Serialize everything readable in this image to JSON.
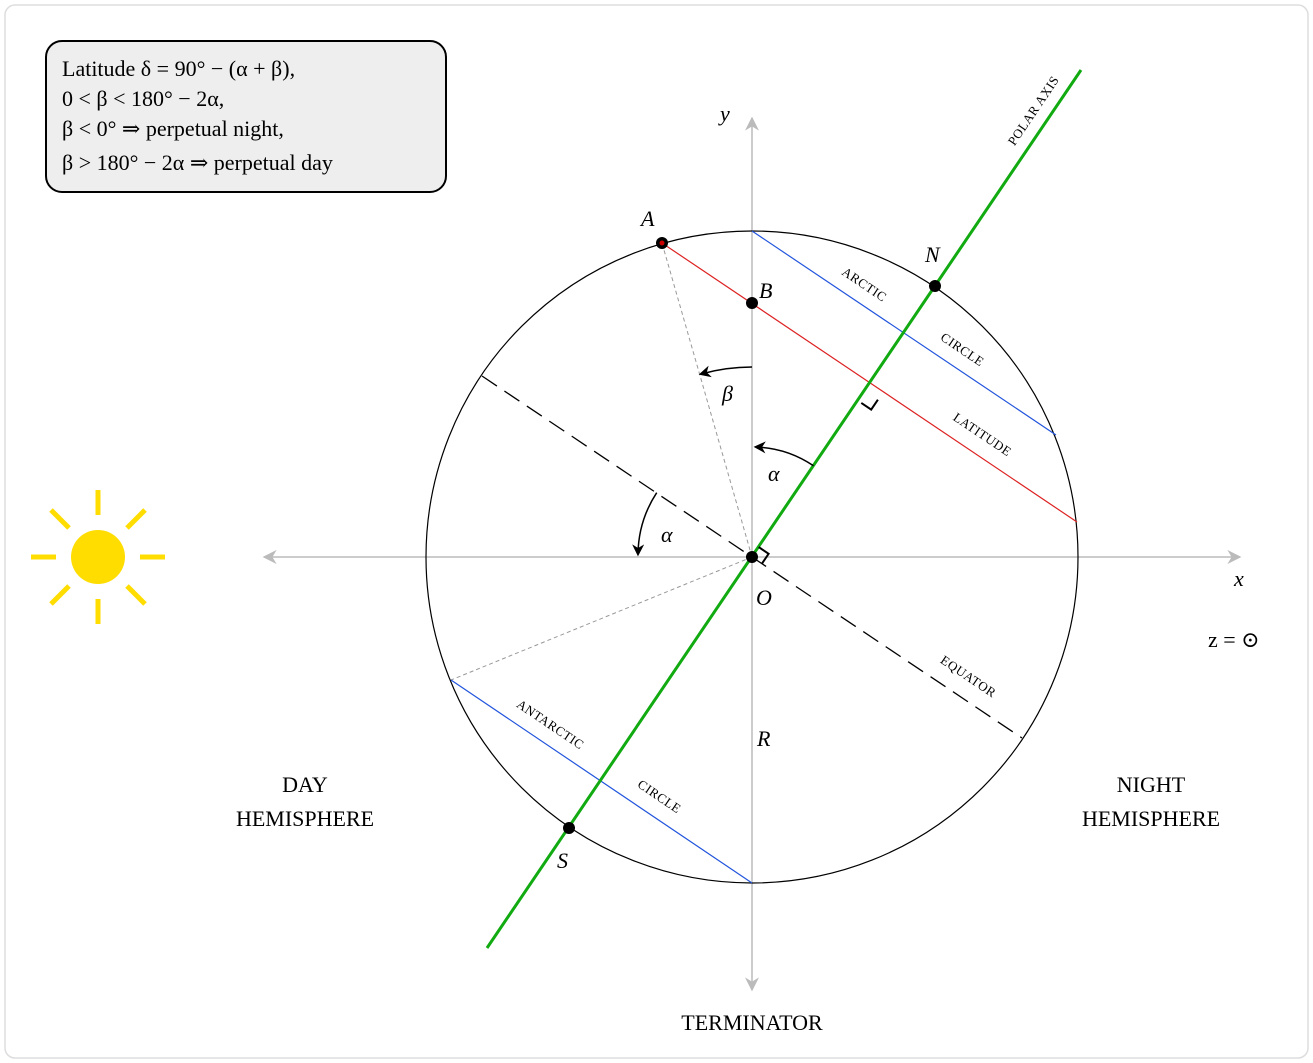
{
  "box": {
    "lines": [
      "Latitude δ = 90° − (α + β),",
      "0 < β < 180° − 2α,",
      "β < 0° ⇒ perpetual night,",
      "β > 180° − 2α ⇒ perpetual day"
    ]
  },
  "axes": {
    "x": "x",
    "y": "y",
    "z": "z = ⊙"
  },
  "points": {
    "O": "O",
    "A": "A",
    "B": "B",
    "N": "N",
    "S": "S",
    "R": "R"
  },
  "angles": {
    "alpha_1": "α",
    "alpha_2": "α",
    "beta": "β"
  },
  "lines": {
    "polar_axis": "POLAR AXIS",
    "arctic": "ARCTIC",
    "arctic_circle": "CIRCLE",
    "latitude": "LATITUDE",
    "antarctic": "ANTARCTIC",
    "antarctic_circle": "CIRCLE",
    "equator": "EQUATOR"
  },
  "regions": {
    "day": [
      "DAY",
      "HEMISPHERE"
    ],
    "night": [
      "NIGHT",
      "HEMISPHERE"
    ],
    "terminator": "TERMINATOR"
  }
}
